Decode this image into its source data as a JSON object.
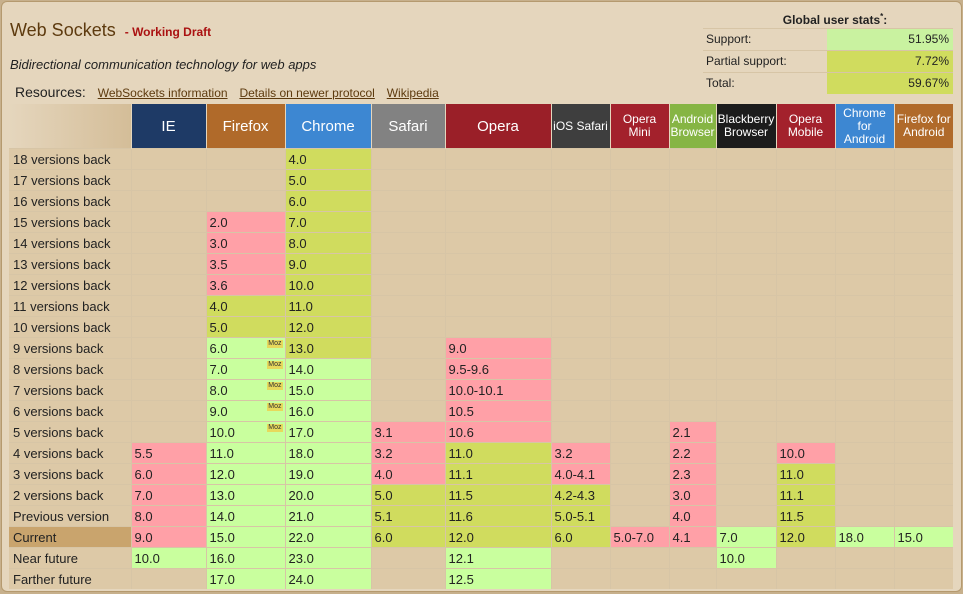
{
  "feature": {
    "title": "Web Sockets",
    "status": "- Working Draft",
    "description": "Bidirectional communication technology for web apps"
  },
  "resources": {
    "label": "Resources:",
    "links": [
      "WebSockets information",
      "Details on newer protocol",
      "Wikipedia"
    ]
  },
  "stats": {
    "title": "Global user stats",
    "footnote_marker": "*",
    "title_suffix": ":",
    "rows": [
      {
        "label": "Support:",
        "value": "51.95%",
        "kind": "support"
      },
      {
        "label": "Partial support:",
        "value": "7.72%",
        "kind": "partial"
      },
      {
        "label": "Total:",
        "value": "59.67%",
        "kind": "partial"
      }
    ]
  },
  "note_badge": "Moz",
  "status_colors": {
    "y": "#c9ff9e",
    "n": "#ffa0a7",
    "a": "#d0dc5e",
    "u": "#ddc9a7"
  },
  "browsers": [
    {
      "lines": [
        "IE"
      ],
      "color": "#1e3a66"
    },
    {
      "lines": [
        "Firefox"
      ],
      "color": "#b06a2a"
    },
    {
      "lines": [
        "Chrome"
      ],
      "color": "#3d87d2"
    },
    {
      "lines": [
        "Safari"
      ],
      "color": "#828282"
    },
    {
      "lines": [
        "Opera"
      ],
      "color": "#9a1f28"
    },
    {
      "lines": [
        "iOS Safari"
      ],
      "color": "#3e3e3e"
    },
    {
      "lines": [
        "Opera",
        "Mini"
      ],
      "color": "#a3212c"
    },
    {
      "lines": [
        "Android",
        "Browser"
      ],
      "color": "#86b544"
    },
    {
      "lines": [
        "Blackberry",
        "Browser"
      ],
      "color": "#1c1c1c"
    },
    {
      "lines": [
        "Opera",
        "Mobile"
      ],
      "color": "#a3212c"
    },
    {
      "lines": [
        "Chrome",
        "for",
        "Android"
      ],
      "color": "#3d87d2"
    },
    {
      "lines": [
        "Firefox for",
        "Android"
      ],
      "color": "#b06a2a"
    }
  ],
  "rows": [
    {
      "label": "18 versions back",
      "cells": [
        [
          "",
          ""
        ],
        [
          "",
          ""
        ],
        [
          "4.0",
          "a"
        ],
        [
          "",
          ""
        ],
        [
          "",
          ""
        ],
        [
          "",
          ""
        ],
        [
          "",
          ""
        ],
        [
          "",
          ""
        ],
        [
          "",
          ""
        ],
        [
          "",
          ""
        ],
        [
          "",
          ""
        ],
        [
          "",
          ""
        ]
      ]
    },
    {
      "label": "17 versions back",
      "cells": [
        [
          "",
          ""
        ],
        [
          "",
          ""
        ],
        [
          "5.0",
          "a"
        ],
        [
          "",
          ""
        ],
        [
          "",
          ""
        ],
        [
          "",
          ""
        ],
        [
          "",
          ""
        ],
        [
          "",
          ""
        ],
        [
          "",
          ""
        ],
        [
          "",
          ""
        ],
        [
          "",
          ""
        ],
        [
          "",
          ""
        ]
      ]
    },
    {
      "label": "16 versions back",
      "cells": [
        [
          "",
          ""
        ],
        [
          "",
          ""
        ],
        [
          "6.0",
          "a"
        ],
        [
          "",
          ""
        ],
        [
          "",
          ""
        ],
        [
          "",
          ""
        ],
        [
          "",
          ""
        ],
        [
          "",
          ""
        ],
        [
          "",
          ""
        ],
        [
          "",
          ""
        ],
        [
          "",
          ""
        ],
        [
          "",
          ""
        ]
      ]
    },
    {
      "label": "15 versions back",
      "cells": [
        [
          "",
          ""
        ],
        [
          "2.0",
          "n"
        ],
        [
          "7.0",
          "a"
        ],
        [
          "",
          ""
        ],
        [
          "",
          ""
        ],
        [
          "",
          ""
        ],
        [
          "",
          ""
        ],
        [
          "",
          ""
        ],
        [
          "",
          ""
        ],
        [
          "",
          ""
        ],
        [
          "",
          ""
        ],
        [
          "",
          ""
        ]
      ]
    },
    {
      "label": "14 versions back",
      "cells": [
        [
          "",
          ""
        ],
        [
          "3.0",
          "n"
        ],
        [
          "8.0",
          "a"
        ],
        [
          "",
          ""
        ],
        [
          "",
          ""
        ],
        [
          "",
          ""
        ],
        [
          "",
          ""
        ],
        [
          "",
          ""
        ],
        [
          "",
          ""
        ],
        [
          "",
          ""
        ],
        [
          "",
          ""
        ],
        [
          "",
          ""
        ]
      ]
    },
    {
      "label": "13 versions back",
      "cells": [
        [
          "",
          ""
        ],
        [
          "3.5",
          "n"
        ],
        [
          "9.0",
          "a"
        ],
        [
          "",
          ""
        ],
        [
          "",
          ""
        ],
        [
          "",
          ""
        ],
        [
          "",
          ""
        ],
        [
          "",
          ""
        ],
        [
          "",
          ""
        ],
        [
          "",
          ""
        ],
        [
          "",
          ""
        ],
        [
          "",
          ""
        ]
      ]
    },
    {
      "label": "12 versions back",
      "cells": [
        [
          "",
          ""
        ],
        [
          "3.6",
          "n"
        ],
        [
          "10.0",
          "a"
        ],
        [
          "",
          ""
        ],
        [
          "",
          ""
        ],
        [
          "",
          ""
        ],
        [
          "",
          ""
        ],
        [
          "",
          ""
        ],
        [
          "",
          ""
        ],
        [
          "",
          ""
        ],
        [
          "",
          ""
        ],
        [
          "",
          ""
        ]
      ]
    },
    {
      "label": "11 versions back",
      "cells": [
        [
          "",
          ""
        ],
        [
          "4.0",
          "a"
        ],
        [
          "11.0",
          "a"
        ],
        [
          "",
          ""
        ],
        [
          "",
          ""
        ],
        [
          "",
          ""
        ],
        [
          "",
          ""
        ],
        [
          "",
          ""
        ],
        [
          "",
          ""
        ],
        [
          "",
          ""
        ],
        [
          "",
          ""
        ],
        [
          "",
          ""
        ]
      ]
    },
    {
      "label": "10 versions back",
      "cells": [
        [
          "",
          ""
        ],
        [
          "5.0",
          "a"
        ],
        [
          "12.0",
          "a"
        ],
        [
          "",
          ""
        ],
        [
          "",
          ""
        ],
        [
          "",
          ""
        ],
        [
          "",
          ""
        ],
        [
          "",
          ""
        ],
        [
          "",
          ""
        ],
        [
          "",
          ""
        ],
        [
          "",
          ""
        ],
        [
          "",
          ""
        ]
      ]
    },
    {
      "label": "9 versions back",
      "cells": [
        [
          "",
          ""
        ],
        [
          "6.0",
          "y",
          "Moz"
        ],
        [
          "13.0",
          "a"
        ],
        [
          "",
          ""
        ],
        [
          "9.0",
          "n"
        ],
        [
          "",
          ""
        ],
        [
          "",
          ""
        ],
        [
          "",
          ""
        ],
        [
          "",
          ""
        ],
        [
          "",
          ""
        ],
        [
          "",
          ""
        ],
        [
          "",
          ""
        ]
      ]
    },
    {
      "label": "8 versions back",
      "cells": [
        [
          "",
          ""
        ],
        [
          "7.0",
          "y",
          "Moz"
        ],
        [
          "14.0",
          "y"
        ],
        [
          "",
          ""
        ],
        [
          "9.5-9.6",
          "n"
        ],
        [
          "",
          ""
        ],
        [
          "",
          ""
        ],
        [
          "",
          ""
        ],
        [
          "",
          ""
        ],
        [
          "",
          ""
        ],
        [
          "",
          ""
        ],
        [
          "",
          ""
        ]
      ]
    },
    {
      "label": "7 versions back",
      "cells": [
        [
          "",
          ""
        ],
        [
          "8.0",
          "y",
          "Moz"
        ],
        [
          "15.0",
          "y"
        ],
        [
          "",
          ""
        ],
        [
          "10.0-10.1",
          "n"
        ],
        [
          "",
          ""
        ],
        [
          "",
          ""
        ],
        [
          "",
          ""
        ],
        [
          "",
          ""
        ],
        [
          "",
          ""
        ],
        [
          "",
          ""
        ],
        [
          "",
          ""
        ]
      ]
    },
    {
      "label": "6 versions back",
      "cells": [
        [
          "",
          ""
        ],
        [
          "9.0",
          "y",
          "Moz"
        ],
        [
          "16.0",
          "y"
        ],
        [
          "",
          ""
        ],
        [
          "10.5",
          "n"
        ],
        [
          "",
          ""
        ],
        [
          "",
          ""
        ],
        [
          "",
          ""
        ],
        [
          "",
          ""
        ],
        [
          "",
          ""
        ],
        [
          "",
          ""
        ],
        [
          "",
          ""
        ]
      ]
    },
    {
      "label": "5 versions back",
      "cells": [
        [
          "",
          ""
        ],
        [
          "10.0",
          "y",
          "Moz"
        ],
        [
          "17.0",
          "y"
        ],
        [
          "3.1",
          "n"
        ],
        [
          "10.6",
          "n"
        ],
        [
          "",
          ""
        ],
        [
          "",
          ""
        ],
        [
          "2.1",
          "n"
        ],
        [
          "",
          ""
        ],
        [
          "",
          ""
        ],
        [
          "",
          ""
        ],
        [
          "",
          ""
        ]
      ]
    },
    {
      "label": "4 versions back",
      "cells": [
        [
          "5.5",
          "n"
        ],
        [
          "11.0",
          "y"
        ],
        [
          "18.0",
          "y"
        ],
        [
          "3.2",
          "n"
        ],
        [
          "11.0",
          "a"
        ],
        [
          "3.2",
          "n"
        ],
        [
          "",
          ""
        ],
        [
          "2.2",
          "n"
        ],
        [
          "",
          ""
        ],
        [
          "10.0",
          "n"
        ],
        [
          "",
          ""
        ],
        [
          "",
          ""
        ]
      ]
    },
    {
      "label": "3 versions back",
      "cells": [
        [
          "6.0",
          "n"
        ],
        [
          "12.0",
          "y"
        ],
        [
          "19.0",
          "y"
        ],
        [
          "4.0",
          "n"
        ],
        [
          "11.1",
          "a"
        ],
        [
          "4.0-4.1",
          "n"
        ],
        [
          "",
          ""
        ],
        [
          "2.3",
          "n"
        ],
        [
          "",
          ""
        ],
        [
          "11.0",
          "a"
        ],
        [
          "",
          ""
        ],
        [
          "",
          ""
        ]
      ]
    },
    {
      "label": "2 versions back",
      "cells": [
        [
          "7.0",
          "n"
        ],
        [
          "13.0",
          "y"
        ],
        [
          "20.0",
          "y"
        ],
        [
          "5.0",
          "a"
        ],
        [
          "11.5",
          "a"
        ],
        [
          "4.2-4.3",
          "a"
        ],
        [
          "",
          ""
        ],
        [
          "3.0",
          "n"
        ],
        [
          "",
          ""
        ],
        [
          "11.1",
          "a"
        ],
        [
          "",
          ""
        ],
        [
          "",
          ""
        ]
      ]
    },
    {
      "label": "Previous version",
      "cells": [
        [
          "8.0",
          "n"
        ],
        [
          "14.0",
          "y"
        ],
        [
          "21.0",
          "y"
        ],
        [
          "5.1",
          "a"
        ],
        [
          "11.6",
          "a"
        ],
        [
          "5.0-5.1",
          "a"
        ],
        [
          "",
          ""
        ],
        [
          "4.0",
          "n"
        ],
        [
          "",
          ""
        ],
        [
          "11.5",
          "a"
        ],
        [
          "",
          ""
        ],
        [
          "",
          ""
        ]
      ]
    },
    {
      "label": "Current",
      "current": true,
      "cells": [
        [
          "9.0",
          "n"
        ],
        [
          "15.0",
          "y"
        ],
        [
          "22.0",
          "y"
        ],
        [
          "6.0",
          "a"
        ],
        [
          "12.0",
          "a"
        ],
        [
          "6.0",
          "a"
        ],
        [
          "5.0-7.0",
          "n"
        ],
        [
          "4.1",
          "n"
        ],
        [
          "7.0",
          "y"
        ],
        [
          "12.0",
          "a"
        ],
        [
          "18.0",
          "y"
        ],
        [
          "15.0",
          "y"
        ]
      ]
    },
    {
      "label": "Near future",
      "cells": [
        [
          "10.0",
          "y"
        ],
        [
          "16.0",
          "y"
        ],
        [
          "23.0",
          "y"
        ],
        [
          "",
          ""
        ],
        [
          "12.1",
          "y"
        ],
        [
          "",
          ""
        ],
        [
          "",
          ""
        ],
        [
          "",
          ""
        ],
        [
          "10.0",
          "y"
        ],
        [
          "",
          ""
        ],
        [
          "",
          ""
        ],
        [
          "",
          ""
        ]
      ]
    },
    {
      "label": "Farther future",
      "cells": [
        [
          "",
          ""
        ],
        [
          "17.0",
          "y"
        ],
        [
          "24.0",
          "y"
        ],
        [
          "",
          ""
        ],
        [
          "12.5",
          "y"
        ],
        [
          "",
          ""
        ],
        [
          "",
          ""
        ],
        [
          "",
          ""
        ],
        [
          "",
          ""
        ],
        [
          "",
          ""
        ],
        [
          "",
          ""
        ],
        [
          "",
          ""
        ]
      ]
    }
  ]
}
